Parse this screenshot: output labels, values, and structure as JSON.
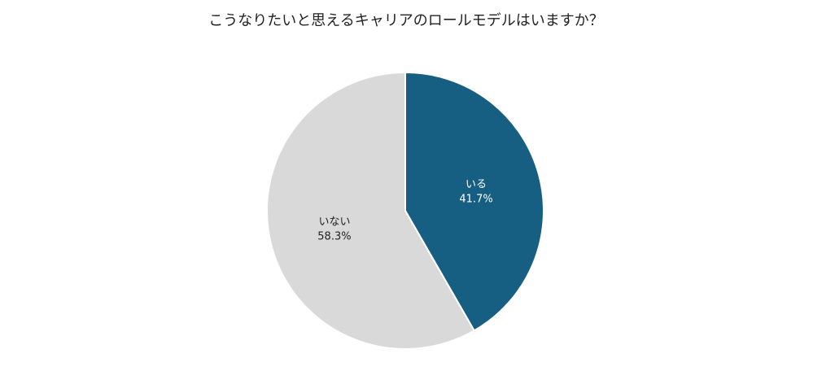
{
  "chart_data": {
    "type": "pie",
    "title": "こうなりたいと思えるキャリアのロールモデルはいますか？",
    "categories": [
      "いる",
      "いない"
    ],
    "values": [
      41.7,
      58.3
    ],
    "value_labels": [
      "41.7%",
      "58.3%"
    ],
    "colors": [
      "#165f82",
      "#d9d9d9"
    ]
  }
}
